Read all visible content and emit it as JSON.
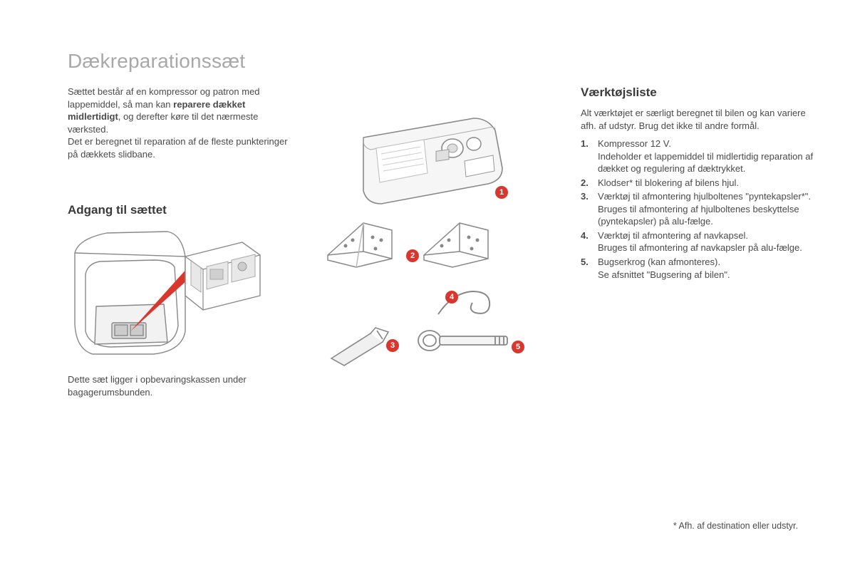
{
  "title": "Dækreparationssæt",
  "intro": {
    "part1": "Sættet består af en kompressor og patron med lappemiddel, så man kan ",
    "bold": "reparere dækket midlertidigt",
    "part2": ", og derefter køre til det nærmeste værksted.",
    "part3": "Det er beregnet til reparation af de fleste punkteringer på dækkets slidbane."
  },
  "access": {
    "heading": "Adgang til sættet",
    "caption": "Dette sæt ligger i opbevaringskassen under bagagerumsbunden."
  },
  "tools": {
    "heading": "Værktøjsliste",
    "intro": "Alt værktøjet er særligt beregnet til bilen og kan variere afh. af udstyr. Brug det ikke til andre formål.",
    "items": [
      {
        "num": "1.",
        "text": "Kompressor 12 V.\nIndeholder et lappemiddel til midlertidig reparation af dækket og regulering af dæktrykket."
      },
      {
        "num": "2.",
        "text": "Klodser* til blokering af bilens hjul."
      },
      {
        "num": "3.",
        "text": "Værktøj til afmontering hjulboltenes \"pyntekapsler*\".\nBruges til afmontering af hjulboltenes beskyttelse (pyntekapsler) på alu-fælge."
      },
      {
        "num": "4.",
        "text": "Værktøj til afmontering af navkapsel.\nBruges til afmontering af navkapsler på alu-fælge."
      },
      {
        "num": "5.",
        "text": "Bugserkrog (kan afmonteres).\nSe afsnittet \"Bugsering af bilen\"."
      }
    ]
  },
  "footnote": "* Afh. af destination eller udstyr.",
  "colors": {
    "title": "#a8a8a8",
    "body": "#4a4a4a",
    "heading": "#3a3a3a",
    "badge_bg": "#d9362e",
    "line": "#888888",
    "line_light": "#cccccc",
    "fill_light": "#f2f2f2",
    "red_triangle": "#d9362e"
  },
  "badges": [
    "1",
    "2",
    "3",
    "4",
    "5"
  ]
}
